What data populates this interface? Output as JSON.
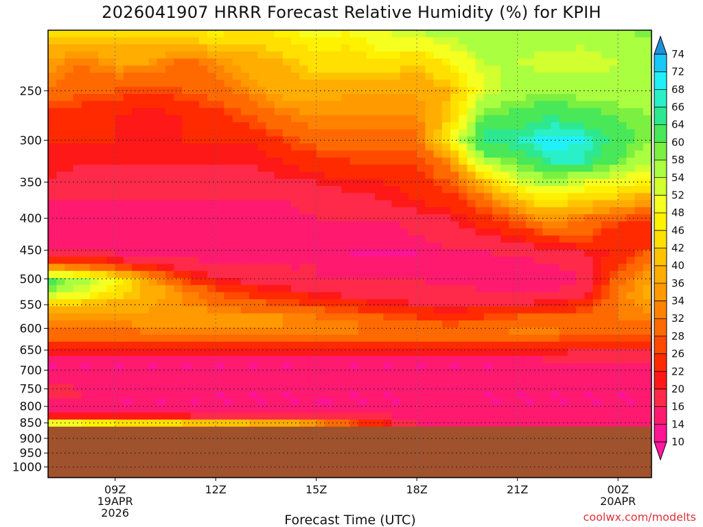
{
  "title": "2026041907 HRRR Forecast Relative Humidity (%) for KPIH",
  "credit": "coolwx.com/modelts",
  "chart_data": {
    "type": "heatmap",
    "title": "2026041907 HRRR Forecast Relative Humidity (%) for KPIH",
    "xlabel": "Forecast Time (UTC)",
    "ylabel": "",
    "y_scale": "log-pressure (hPa)",
    "x_ticks": [
      {
        "h": 9,
        "lines": [
          "09Z",
          "19APR",
          "2026"
        ]
      },
      {
        "h": 12,
        "lines": [
          "12Z"
        ]
      },
      {
        "h": 15,
        "lines": [
          "15Z"
        ]
      },
      {
        "h": 18,
        "lines": [
          "18Z"
        ]
      },
      {
        "h": 21,
        "lines": [
          "21Z"
        ]
      },
      {
        "h": 24,
        "lines": [
          "00Z",
          "20APR"
        ]
      }
    ],
    "x_range_hours": [
      7,
      25
    ],
    "y_ticks": [
      250,
      300,
      350,
      400,
      450,
      500,
      550,
      600,
      650,
      700,
      750,
      800,
      850,
      900,
      950,
      1000
    ],
    "y_range_hpa": [
      200,
      1040
    ],
    "grid": true,
    "ground_level_hpa": 862,
    "colorbar": {
      "levels": [
        10,
        14,
        16,
        20,
        22,
        26,
        28,
        32,
        34,
        36,
        40,
        42,
        46,
        48,
        52,
        54,
        58,
        60,
        64,
        66,
        68,
        72,
        74
      ],
      "colors": [
        "#ff1493",
        "#ff1a70",
        "#ff2a4a",
        "#ff1818",
        "#ff2a00",
        "#ff4a00",
        "#ff6a00",
        "#ff8200",
        "#ff9a00",
        "#ffad00",
        "#ffc400",
        "#ffe000",
        "#fff200",
        "#f5ff20",
        "#d2ff30",
        "#aaff40",
        "#7cf040",
        "#48e858",
        "#2ee890",
        "#2af0c8",
        "#20f0f8",
        "#18c8f8",
        "#1890f0"
      ],
      "top_arrow_color": "#1e90d8",
      "bottom_arrow_color": "#ff1aa0",
      "ground_color": "#a0522d"
    },
    "times": [
      7,
      8,
      9,
      10,
      11,
      12,
      13,
      14,
      15,
      16,
      17,
      18,
      19,
      20,
      21,
      22,
      23,
      24,
      25
    ],
    "pressures": [
      200,
      225,
      250,
      275,
      300,
      325,
      350,
      375,
      400,
      425,
      450,
      475,
      500,
      525,
      550,
      575,
      600,
      625,
      650,
      675,
      700,
      725,
      750,
      775,
      800,
      825,
      850
    ],
    "rh": [
      [
        44,
        44,
        43,
        44,
        46,
        48,
        44,
        48,
        50,
        48,
        52,
        55,
        56,
        58,
        58,
        57,
        56,
        58,
        59
      ],
      [
        36,
        32,
        36,
        36,
        30,
        34,
        38,
        40,
        44,
        44,
        46,
        42,
        48,
        54,
        54,
        52,
        52,
        54,
        55
      ],
      [
        32,
        28,
        28,
        26,
        28,
        30,
        34,
        38,
        38,
        36,
        36,
        36,
        40,
        52,
        56,
        58,
        56,
        56,
        56
      ],
      [
        24,
        24,
        22,
        20,
        22,
        24,
        28,
        32,
        34,
        34,
        34,
        34,
        42,
        60,
        62,
        64,
        62,
        60,
        58
      ],
      [
        22,
        22,
        22,
        22,
        22,
        22,
        22,
        26,
        30,
        30,
        30,
        30,
        48,
        66,
        66,
        70,
        68,
        62,
        58
      ],
      [
        22,
        20,
        20,
        20,
        20,
        20,
        20,
        22,
        24,
        26,
        26,
        26,
        34,
        56,
        60,
        66,
        66,
        60,
        54
      ],
      [
        20,
        18,
        18,
        18,
        18,
        18,
        18,
        20,
        20,
        22,
        22,
        24,
        28,
        40,
        52,
        56,
        52,
        50,
        46
      ],
      [
        16,
        16,
        16,
        16,
        16,
        16,
        16,
        16,
        18,
        18,
        20,
        22,
        24,
        30,
        40,
        46,
        42,
        40,
        36
      ],
      [
        14,
        14,
        14,
        14,
        14,
        14,
        14,
        14,
        16,
        16,
        16,
        18,
        20,
        24,
        30,
        36,
        32,
        28,
        26
      ],
      [
        14,
        14,
        14,
        14,
        14,
        14,
        14,
        14,
        14,
        14,
        14,
        16,
        18,
        20,
        22,
        28,
        30,
        22,
        22
      ],
      [
        16,
        16,
        14,
        14,
        14,
        14,
        14,
        14,
        14,
        14,
        14,
        14,
        16,
        16,
        18,
        18,
        20,
        22,
        28
      ],
      [
        30,
        28,
        24,
        20,
        18,
        16,
        16,
        16,
        16,
        14,
        14,
        14,
        14,
        14,
        14,
        16,
        18,
        26,
        34
      ],
      [
        62,
        56,
        48,
        36,
        26,
        20,
        18,
        16,
        16,
        16,
        16,
        16,
        14,
        14,
        14,
        14,
        16,
        30,
        36
      ],
      [
        58,
        52,
        46,
        40,
        34,
        28,
        24,
        22,
        20,
        18,
        18,
        18,
        18,
        16,
        16,
        16,
        18,
        32,
        38
      ],
      [
        42,
        40,
        38,
        36,
        34,
        32,
        30,
        28,
        26,
        24,
        22,
        20,
        20,
        20,
        20,
        22,
        24,
        32,
        36
      ],
      [
        36,
        36,
        36,
        36,
        36,
        36,
        34,
        34,
        32,
        30,
        28,
        26,
        24,
        26,
        28,
        28,
        30,
        32,
        34
      ],
      [
        32,
        32,
        32,
        34,
        34,
        34,
        34,
        34,
        34,
        34,
        32,
        32,
        30,
        32,
        34,
        34,
        32,
        30,
        30
      ],
      [
        28,
        28,
        28,
        28,
        28,
        28,
        28,
        28,
        28,
        28,
        28,
        28,
        28,
        28,
        28,
        28,
        26,
        26,
        26
      ],
      [
        22,
        22,
        22,
        22,
        22,
        22,
        22,
        22,
        22,
        22,
        22,
        22,
        22,
        22,
        22,
        22,
        20,
        20,
        20
      ],
      [
        14,
        14,
        14,
        14,
        14,
        14,
        14,
        14,
        14,
        14,
        14,
        14,
        14,
        14,
        14,
        16,
        18,
        16,
        16
      ],
      [
        14,
        14,
        14,
        14,
        14,
        14,
        14,
        14,
        14,
        14,
        14,
        14,
        14,
        14,
        14,
        14,
        14,
        14,
        14
      ],
      [
        16,
        14,
        14,
        14,
        14,
        14,
        14,
        14,
        14,
        14,
        14,
        14,
        14,
        14,
        14,
        14,
        14,
        14,
        14
      ],
      [
        18,
        16,
        16,
        16,
        16,
        14,
        14,
        14,
        14,
        14,
        14,
        14,
        14,
        14,
        14,
        14,
        14,
        14,
        14
      ],
      [
        16,
        16,
        14,
        14,
        14,
        14,
        14,
        14,
        14,
        14,
        14,
        14,
        16,
        14,
        14,
        14,
        14,
        14,
        14
      ],
      [
        14,
        14,
        14,
        14,
        14,
        14,
        14,
        14,
        14,
        14,
        14,
        14,
        14,
        14,
        14,
        14,
        14,
        14,
        14
      ],
      [
        16,
        16,
        16,
        16,
        16,
        16,
        16,
        16,
        16,
        16,
        16,
        14,
        14,
        14,
        14,
        14,
        14,
        14,
        14
      ],
      [
        52,
        48,
        46,
        44,
        42,
        40,
        40,
        38,
        34,
        28,
        22,
        16,
        14,
        14,
        14,
        14,
        14,
        14,
        14
      ]
    ]
  }
}
